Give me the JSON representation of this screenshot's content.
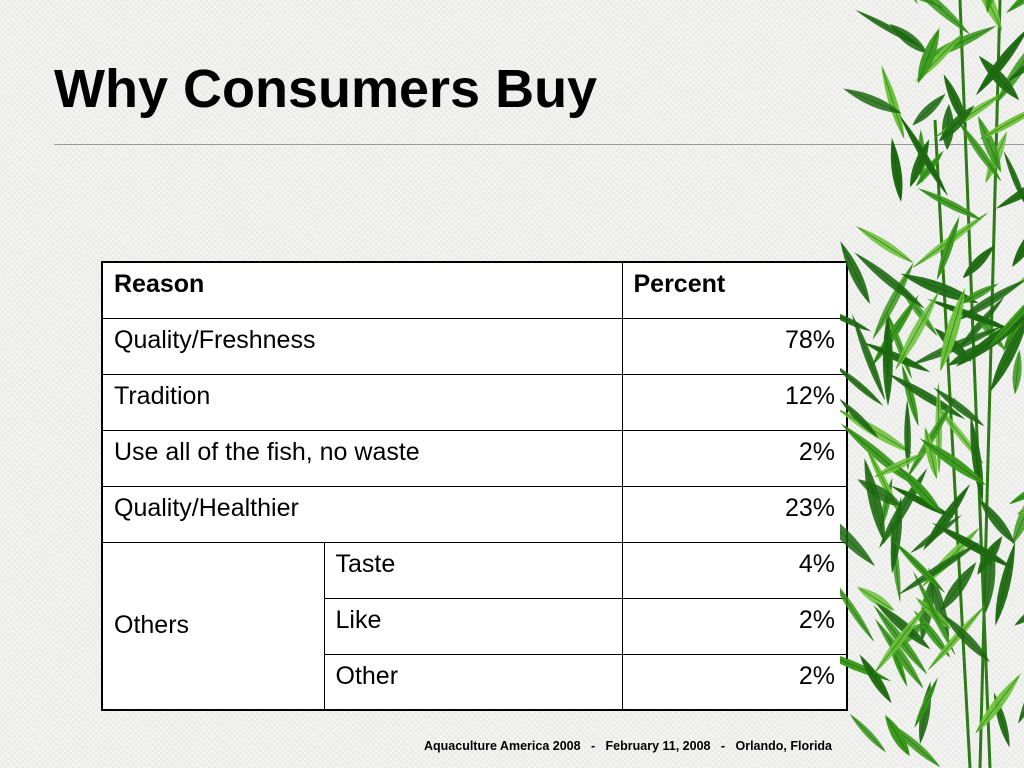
{
  "slide": {
    "title": "Why Consumers Buy",
    "footer": "Aquaculture America 2008   -   February 11, 2008   -   Orlando, Florida"
  },
  "table": {
    "headers": {
      "reason": "Reason",
      "percent": "Percent"
    },
    "rows": [
      {
        "reason": "Quality/Freshness",
        "percent": "78%"
      },
      {
        "reason": "Tradition",
        "percent": "12%"
      },
      {
        "reason": "Use all of the fish, no waste",
        "percent": "2%"
      },
      {
        "reason": "Quality/Healthier",
        "percent": "23%"
      }
    ],
    "group": {
      "label": "Others",
      "items": [
        {
          "reason": "Taste",
          "percent": "4%"
        },
        {
          "reason": "Like",
          "percent": "2%"
        },
        {
          "reason": "Other",
          "percent": "2%"
        }
      ]
    }
  },
  "decoration": {
    "image": "bamboo-leaves",
    "colors": {
      "leaf_dark": "#1f6b12",
      "leaf_mid": "#3a9a1c",
      "leaf_light": "#6cc23a"
    }
  }
}
